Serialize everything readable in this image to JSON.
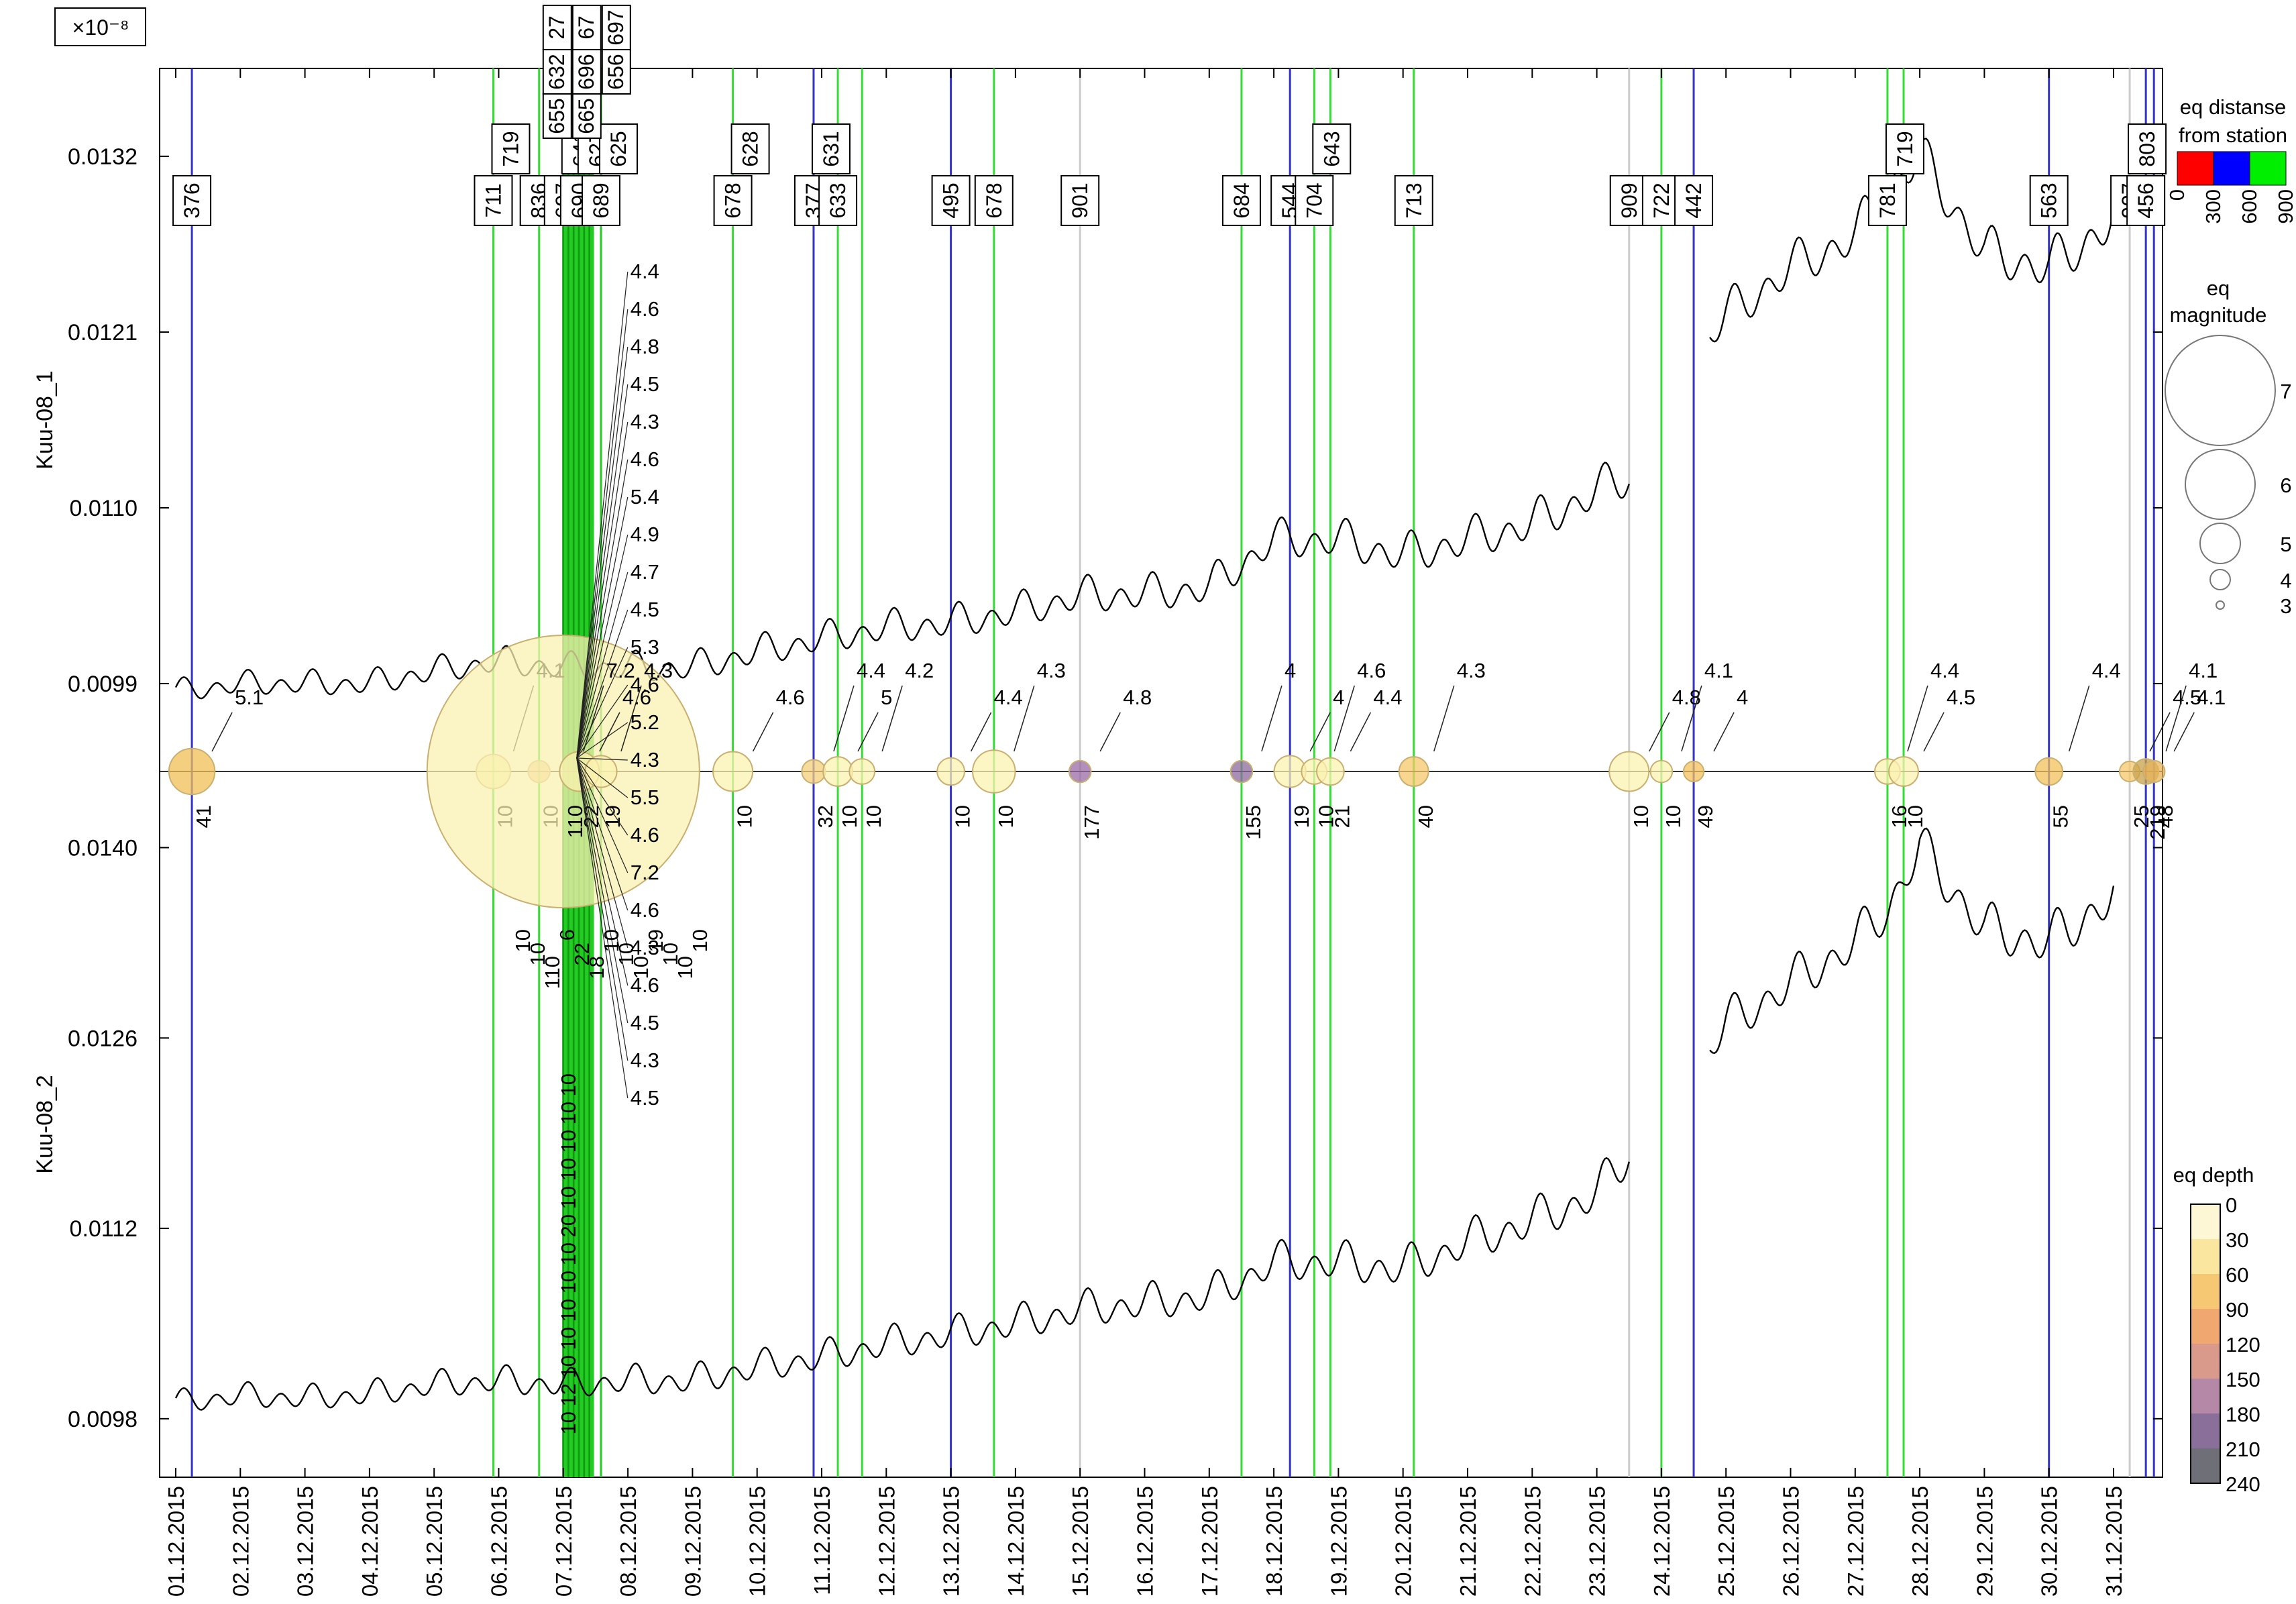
{
  "chart_data": {
    "type": "line",
    "exponent_label": "×10⁻⁸",
    "start_date": "01.12.2015",
    "end_date": "31.12.2015",
    "x_tick_labels": [
      "01.12.2015",
      "02.12.2015",
      "03.12.2015",
      "04.12.2015",
      "05.12.2015",
      "06.12.2015",
      "07.12.2015",
      "08.12.2015",
      "09.12.2015",
      "10.12.2015",
      "11.12.2015",
      "12.12.2015",
      "13.12.2015",
      "14.12.2015",
      "15.12.2015",
      "16.12.2015",
      "17.12.2015",
      "18.12.2015",
      "19.12.2015",
      "20.12.2015",
      "21.12.2015",
      "22.12.2015",
      "23.12.2015",
      "24.12.2015",
      "25.12.2015",
      "26.12.2015",
      "27.12.2015",
      "28.12.2015",
      "29.12.2015",
      "30.12.2015",
      "31.12.2015"
    ],
    "panels": [
      {
        "name": "Kuu-08_1",
        "y_tick_labels": [
          "0.0132",
          "0.0121",
          "0.0110",
          "0.0099"
        ],
        "y_tick_values": [
          0.0132,
          0.0121,
          0.011,
          0.0099
        ],
        "ylim": [
          0.00935,
          0.01375
        ],
        "points": [
          [
            "01.12.2015 00:00",
            0.00985
          ],
          [
            "02.12.2015 00:00",
            0.0099
          ],
          [
            "03.12.2015 00:00",
            0.0099
          ],
          [
            "04.12.2015 00:00",
            0.0099
          ],
          [
            "05.12.2015 00:00",
            0.00998
          ],
          [
            "06.12.2015 00:00",
            0.01004
          ],
          [
            "07.12.2015 00:00",
            0.01
          ],
          [
            "08.12.2015 00:00",
            0.01
          ],
          [
            "09.12.2015 00:00",
            0.01
          ],
          [
            "10.12.2015 00:00",
            0.0101
          ],
          [
            "11.12.2015 00:00",
            0.01018
          ],
          [
            "12.12.2015 00:00",
            0.01025
          ],
          [
            "13.12.2015 00:00",
            0.01028
          ],
          [
            "14.12.2015 00:00",
            0.01035
          ],
          [
            "15.12.2015 00:00",
            0.01045
          ],
          [
            "16.12.2015 00:00",
            0.01046
          ],
          [
            "17.12.2015 00:00",
            0.0105
          ],
          [
            "18.12.2015 00:00",
            0.0108
          ],
          [
            "19.12.2015 00:00",
            0.0108
          ],
          [
            "20.12.2015 00:00",
            0.0107
          ],
          [
            "21.12.2015 00:00",
            0.0108
          ],
          [
            "22.12.2015 00:00",
            0.0109
          ],
          [
            "23.12.2015 00:00",
            0.0111
          ],
          [
            "23.12.2015 12:00",
            0.0112
          ]
        ],
        "points_after_gap": [
          [
            "24.12.2015 18:00",
            0.0121
          ],
          [
            "25.12.2015 00:00",
            0.0122
          ],
          [
            "26.12.2015 00:00",
            0.0125
          ],
          [
            "27.12.2015 00:00",
            0.0127
          ],
          [
            "27.12.2015 12:00",
            0.013
          ],
          [
            "28.12.2015 00:00",
            0.0132
          ],
          [
            "29.12.2015 00:00",
            0.0126
          ],
          [
            "30.12.2015 00:00",
            0.0125
          ],
          [
            "31.12.2015 00:00",
            0.0128
          ]
        ]
      },
      {
        "name": "Kuu-08_2",
        "y_tick_labels": [
          "0.0140",
          "0.0126",
          "0.0112",
          "0.0098"
        ],
        "y_tick_values": [
          0.014,
          0.0126,
          0.0112,
          0.0098
        ],
        "ylim": [
          0.00937,
          0.01456
        ],
        "points": [
          [
            "01.12.2015 00:00",
            0.00992
          ],
          [
            "02.12.2015 00:00",
            0.00997
          ],
          [
            "03.12.2015 00:00",
            0.00995
          ],
          [
            "04.12.2015 00:00",
            0.00998
          ],
          [
            "05.12.2015 00:00",
            0.01005
          ],
          [
            "06.12.2015 00:00",
            0.01008
          ],
          [
            "07.12.2015 00:00",
            0.01005
          ],
          [
            "08.12.2015 00:00",
            0.01008
          ],
          [
            "09.12.2015 00:00",
            0.01008
          ],
          [
            "10.12.2015 00:00",
            0.01018
          ],
          [
            "11.12.2015 00:00",
            0.01025
          ],
          [
            "12.12.2015 00:00",
            0.01035
          ],
          [
            "13.12.2015 00:00",
            0.01042
          ],
          [
            "14.12.2015 00:00",
            0.0105
          ],
          [
            "15.12.2015 00:00",
            0.0106
          ],
          [
            "16.12.2015 00:00",
            0.01065
          ],
          [
            "17.12.2015 00:00",
            0.0107
          ],
          [
            "18.12.2015 00:00",
            0.01095
          ],
          [
            "19.12.2015 00:00",
            0.01095
          ],
          [
            "20.12.2015 00:00",
            0.0109
          ],
          [
            "21.12.2015 00:00",
            0.0111
          ],
          [
            "22.12.2015 00:00",
            0.01125
          ],
          [
            "23.12.2015 00:00",
            0.01145
          ],
          [
            "23.12.2015 12:00",
            0.01175
          ]
        ],
        "points_after_gap": [
          [
            "24.12.2015 18:00",
            0.01255
          ],
          [
            "25.12.2015 00:00",
            0.0127
          ],
          [
            "26.12.2015 00:00",
            0.013
          ],
          [
            "27.12.2015 00:00",
            0.0133
          ],
          [
            "27.12.2015 12:00",
            0.01355
          ],
          [
            "28.12.2015 00:00",
            0.014
          ],
          [
            "29.12.2015 00:00",
            0.0134
          ],
          [
            "30.12.2015 00:00",
            0.0133
          ],
          [
            "31.12.2015 00:00",
            0.01365
          ]
        ]
      }
    ],
    "vertical_lines": [
      {
        "date": "01.12.2015 06:00",
        "color": "#3333cc",
        "label": "376",
        "depth": "41",
        "mag": "5.1",
        "size": 4.8,
        "fill": "#f2bf55"
      },
      {
        "date": "05.12.2015 22:00",
        "color": "#33dd33",
        "label": "711",
        "top_label": "719",
        "depth": "10",
        "mag": "4.1",
        "size": 4.4,
        "fill": "#fbf2b0"
      },
      {
        "date": "06.12.2015 15:00",
        "color": "#33dd33",
        "label": "836",
        "depth": "10",
        "size": 3.8,
        "fill": "#f5c38a"
      },
      {
        "date": "07.12.2015 00:00",
        "color": "#22cc22",
        "label": "697",
        "top_label": "641",
        "depth": "110",
        "mag": "7.2",
        "size": 7.2,
        "fill": "#faf0b0"
      },
      {
        "date": "07.12.2015 06:00",
        "color": "#22cc22",
        "label": "690",
        "top_label": "627",
        "depth": "22",
        "mag": "4.6",
        "size": 4.6,
        "fill": "#fbf2b0"
      },
      {
        "date": "07.12.2015 14:00",
        "color": "#22cc22",
        "label": "689",
        "top_label": "625",
        "depth": "19",
        "mag": "4.3",
        "size": 4.3,
        "fill": "#fbf2b0"
      },
      {
        "date": "09.12.2015 15:00",
        "color": "#33dd33",
        "label": "678",
        "top_label": "628",
        "depth": "10",
        "mag": "4.6",
        "size": 4.6,
        "fill": "#fbf2b0"
      },
      {
        "date": "10.12.2015 21:00",
        "color": "#3333cc",
        "label": "377",
        "top_label": "631",
        "depth": "32",
        "mag": "4.4",
        "size": 3.9,
        "fill": "#f4cf7a"
      },
      {
        "date": "11.12.2015 06:00",
        "color": "#33dd33",
        "label": "633",
        "depth": "10",
        "mag": "5",
        "size": 4.2,
        "fill": "#fbf2b0"
      },
      {
        "date": "11.12.2015 15:00",
        "color": "#33dd33",
        "depth": "10",
        "mag": "4.2",
        "size": 4.0,
        "fill": "#fbf2b0"
      },
      {
        "date": "13.12.2015 00:00",
        "color": "#3333cc",
        "label": "495",
        "depth": "10",
        "mag": "4.4",
        "size": 4.1,
        "fill": "#fbf2b0"
      },
      {
        "date": "13.12.2015 16:00",
        "color": "#33dd33",
        "label": "678",
        "depth": "10",
        "mag": "4.3",
        "size": 4.7,
        "fill": "#fbf2b0"
      },
      {
        "date": "15.12.2015 00:00",
        "color": "#cccccc",
        "label": "901",
        "depth": "177",
        "mag": "4.8",
        "size": 3.8,
        "fill": "#9a6aa6"
      },
      {
        "date": "17.12.2015 12:00",
        "color": "#33dd33",
        "label": "684",
        "depth": "155",
        "mag": "4",
        "size": 3.8,
        "fill": "#8c6a9e"
      },
      {
        "date": "18.12.2015 06:00",
        "color": "#3333cc",
        "label": "544",
        "depth": "19",
        "mag": "4",
        "size": 4.3,
        "fill": "#fbf2b0"
      },
      {
        "date": "18.12.2015 15:00",
        "color": "#33dd33",
        "label": "704",
        "top_label": "643",
        "depth": "10",
        "mag": "4.6",
        "size": 4.0,
        "fill": "#fbf2b0"
      },
      {
        "date": "18.12.2015 21:00",
        "color": "#33dd33",
        "depth": "21",
        "mag": "4.4",
        "size": 4.1,
        "fill": "#fbf2b0"
      },
      {
        "date": "20.12.2015 04:00",
        "color": "#33dd33",
        "label": "713",
        "depth": "40",
        "mag": "4.3",
        "size": 4.2,
        "fill": "#f5c86a"
      },
      {
        "date": "23.12.2015 12:00",
        "color": "#cccccc",
        "label": "909",
        "depth": "10",
        "mag": "4.8",
        "size": 4.6,
        "fill": "#fbf2b0"
      },
      {
        "date": "24.12.2015 00:00",
        "color": "#33dd33",
        "label": "722",
        "depth": "10",
        "mag": "4.1",
        "size": 3.8,
        "fill": "#fbf2b0"
      },
      {
        "date": "24.12.2015 12:00",
        "color": "#3333cc",
        "label": "442",
        "depth": "49",
        "mag": "4",
        "size": 3.7,
        "fill": "#f3c15a"
      },
      {
        "date": "27.12.2015 12:00",
        "color": "#33dd33",
        "label": "781",
        "top_label": "719",
        "depth": "16",
        "mag": "4.4",
        "size": 4.0,
        "fill": "#fbf2b0"
      },
      {
        "date": "27.12.2015 18:00",
        "color": "#33dd33",
        "depth": "10",
        "mag": "4.5",
        "size": 4.2,
        "fill": "#fbf2b0"
      },
      {
        "date": "30.12.2015 00:00",
        "color": "#3333cc",
        "label": "563",
        "depth": "55",
        "mag": "4.4",
        "size": 4.1,
        "fill": "#f3c15a"
      },
      {
        "date": "31.12.2015 06:00",
        "color": "#cccccc",
        "label": "907",
        "top_label": "803",
        "depth": "25",
        "mag": "4.5",
        "size": 3.7,
        "fill": "#f5c86a"
      },
      {
        "date": "31.12.2015 12:00",
        "color": "#3333cc",
        "label": "456",
        "depth": "219",
        "mag": "4.1",
        "size": 4.0,
        "fill": "#c9a24a"
      },
      {
        "date": "31.12.2015 15:00",
        "color": "#3333cc",
        "depth": "48",
        "mag": "4.1",
        "size": 3.8,
        "fill": "#e8b45a"
      }
    ],
    "cluster_labels": {
      "top_distances": [
        "27",
        "67",
        "697",
        "632",
        "696",
        "656",
        "655",
        "665"
      ],
      "magnitudes": [
        "4.4",
        "4.6",
        "4.8",
        "4.5",
        "4.3",
        "4.6",
        "5.4",
        "4.9",
        "4.7",
        "4.5",
        "5.3",
        "4.6",
        "5.2",
        "4.3",
        "5.5",
        "4.6",
        "7.2",
        "4.6",
        "4.3",
        "4.6",
        "4.5",
        "4.3",
        "4.5"
      ],
      "depths_top": [
        "10",
        "10",
        "110",
        "6",
        "22",
        "18",
        "10",
        "10",
        "10",
        "19",
        "10",
        "10",
        "10"
      ],
      "depths_bottom": [
        "10",
        "10",
        "10",
        "10",
        "10",
        "20",
        "10",
        "10",
        "10",
        "10",
        "10",
        "12",
        "10"
      ]
    },
    "legend": {
      "distance_title_1": "eq distanse",
      "distance_title_2": "from station",
      "distance_ticks": [
        "0",
        "300",
        "600",
        "900"
      ],
      "distance_colors": [
        "#ff0000",
        "#0000ff",
        "#00ee00"
      ],
      "magnitude_title_1": "eq",
      "magnitude_title_2": "magnitude",
      "magnitude_values": [
        "7",
        "6",
        "5",
        "4",
        "3"
      ],
      "depth_title": "eq depth",
      "depth_ticks": [
        "0",
        "30",
        "60",
        "90",
        "120",
        "150",
        "180",
        "210",
        "240"
      ],
      "depth_colors": [
        "#fdf7d6",
        "#fbe6a0",
        "#f7c873",
        "#f0a870",
        "#d99a8c",
        "#b588a8",
        "#8a6f9a",
        "#6f6f78",
        "#555555"
      ]
    }
  }
}
